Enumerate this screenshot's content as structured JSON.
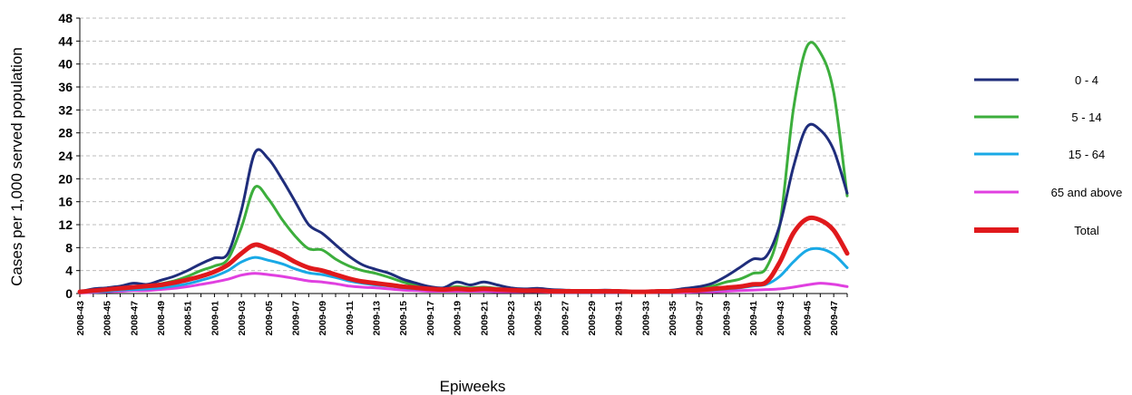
{
  "chart_data": {
    "type": "line",
    "title": "",
    "xlabel": "Epiweeks",
    "ylabel": "Cases per 1,000 served population",
    "ylim": [
      0,
      48
    ],
    "yticks": [
      "0",
      "4",
      "8",
      "12",
      "16",
      "20",
      "24",
      "28",
      "32",
      "36",
      "40",
      "44",
      "48"
    ],
    "grid": "horizontal dashed",
    "legend": "right",
    "x": [
      "2008-43",
      "2008-44",
      "2008-45",
      "2008-46",
      "2008-47",
      "2008-48",
      "2008-49",
      "2008-50",
      "2008-51",
      "2008-52",
      "2009-01",
      "2009-02",
      "2009-03",
      "2009-04",
      "2009-05",
      "2009-06",
      "2009-07",
      "2009-08",
      "2009-09",
      "2009-10",
      "2009-11",
      "2009-12",
      "2009-13",
      "2009-14",
      "2009-15",
      "2009-16",
      "2009-17",
      "2009-18",
      "2009-19",
      "2009-20",
      "2009-21",
      "2009-22",
      "2009-23",
      "2009-24",
      "2009-25",
      "2009-26",
      "2009-27",
      "2009-28",
      "2009-29",
      "2009-30",
      "2009-31",
      "2009-32",
      "2009-33",
      "2009-34",
      "2009-35",
      "2009-36",
      "2009-37",
      "2009-38",
      "2009-39",
      "2009-40",
      "2009-41",
      "2009-42",
      "2009-43",
      "2009-44",
      "2009-45",
      "2009-46",
      "2009-47",
      "2009-48"
    ],
    "xtick_labels": [
      "2008-43",
      "2008-45",
      "2008-47",
      "2008-49",
      "2008-51",
      "2009-01",
      "2009-03",
      "2009-05",
      "2009-07",
      "2009-09",
      "2009-11",
      "2009-13",
      "2009-15",
      "2009-17",
      "2009-19",
      "2009-21",
      "2009-23",
      "2009-25",
      "2009-27",
      "2009-29",
      "2009-31",
      "2009-33",
      "2009-35",
      "2009-37",
      "2009-39",
      "2009-41",
      "2009-43",
      "2009-45",
      "2009-47"
    ],
    "series": [
      {
        "name": "0 - 4",
        "color": "#1f2d7b",
        "values": [
          0.3,
          0.8,
          1.0,
          1.3,
          1.8,
          1.6,
          2.3,
          3.0,
          4.0,
          5.2,
          6.2,
          7.0,
          14.5,
          24.5,
          23.5,
          20.0,
          16.0,
          12.0,
          10.5,
          8.5,
          6.5,
          5.0,
          4.2,
          3.5,
          2.5,
          1.8,
          1.2,
          1.0,
          2.0,
          1.5,
          2.0,
          1.5,
          1.0,
          0.8,
          0.9,
          0.7,
          0.6,
          0.5,
          0.5,
          0.6,
          0.5,
          0.3,
          0.4,
          0.5,
          0.6,
          0.9,
          1.2,
          1.8,
          3.0,
          4.5,
          6.0,
          6.5,
          12.0,
          22.0,
          29.0,
          28.5,
          25.0,
          17.5
        ]
      },
      {
        "name": "5 - 14",
        "color": "#3cae3c",
        "values": [
          0.2,
          0.5,
          0.7,
          0.9,
          1.1,
          1.3,
          1.7,
          2.2,
          3.0,
          4.0,
          4.8,
          6.0,
          11.5,
          18.5,
          16.5,
          13.0,
          10.0,
          7.8,
          7.6,
          6.0,
          4.8,
          4.0,
          3.5,
          2.8,
          2.0,
          1.4,
          1.1,
          0.9,
          1.2,
          1.0,
          1.1,
          0.9,
          0.7,
          0.6,
          0.6,
          0.5,
          0.4,
          0.4,
          0.4,
          0.5,
          0.4,
          0.3,
          0.3,
          0.4,
          0.5,
          0.7,
          0.9,
          1.3,
          2.0,
          2.5,
          3.5,
          4.5,
          12.0,
          32.0,
          43.0,
          42.0,
          35.0,
          17.0
        ]
      },
      {
        "name": "15 - 64",
        "color": "#19a9e6",
        "values": [
          0.2,
          0.3,
          0.4,
          0.6,
          0.7,
          0.8,
          1.0,
          1.3,
          1.7,
          2.3,
          3.0,
          4.0,
          5.5,
          6.3,
          5.8,
          5.2,
          4.3,
          3.6,
          3.3,
          2.8,
          2.2,
          1.8,
          1.5,
          1.3,
          1.0,
          0.8,
          0.7,
          0.6,
          0.7,
          0.6,
          0.7,
          0.6,
          0.5,
          0.4,
          0.4,
          0.3,
          0.3,
          0.3,
          0.3,
          0.3,
          0.3,
          0.2,
          0.2,
          0.3,
          0.3,
          0.4,
          0.5,
          0.6,
          0.8,
          1.0,
          1.3,
          1.6,
          3.0,
          5.5,
          7.5,
          7.8,
          6.8,
          4.5
        ]
      },
      {
        "name": "65 and above",
        "color": "#e040e0",
        "values": [
          0.1,
          0.2,
          0.3,
          0.4,
          0.5,
          0.5,
          0.7,
          0.9,
          1.2,
          1.6,
          2.0,
          2.5,
          3.2,
          3.5,
          3.3,
          3.0,
          2.6,
          2.2,
          2.0,
          1.7,
          1.3,
          1.1,
          1.0,
          0.8,
          0.6,
          0.5,
          0.4,
          0.4,
          0.4,
          0.4,
          0.4,
          0.3,
          0.3,
          0.3,
          0.3,
          0.2,
          0.2,
          0.2,
          0.2,
          0.2,
          0.2,
          0.2,
          0.2,
          0.2,
          0.2,
          0.2,
          0.3,
          0.3,
          0.4,
          0.5,
          0.6,
          0.7,
          0.8,
          1.1,
          1.5,
          1.8,
          1.6,
          1.2
        ]
      },
      {
        "name": "Total",
        "color": "#e0191c",
        "values": [
          0.3,
          0.5,
          0.7,
          0.9,
          1.1,
          1.3,
          1.5,
          1.9,
          2.4,
          3.0,
          3.8,
          5.0,
          7.0,
          8.5,
          7.8,
          6.8,
          5.5,
          4.5,
          4.0,
          3.3,
          2.6,
          2.1,
          1.8,
          1.5,
          1.2,
          1.0,
          0.8,
          0.7,
          0.8,
          0.7,
          0.8,
          0.7,
          0.6,
          0.5,
          0.5,
          0.4,
          0.4,
          0.4,
          0.4,
          0.4,
          0.4,
          0.3,
          0.3,
          0.4,
          0.4,
          0.5,
          0.6,
          0.8,
          1.0,
          1.2,
          1.6,
          2.0,
          5.5,
          10.5,
          13.0,
          12.8,
          11.0,
          7.0
        ]
      }
    ]
  }
}
